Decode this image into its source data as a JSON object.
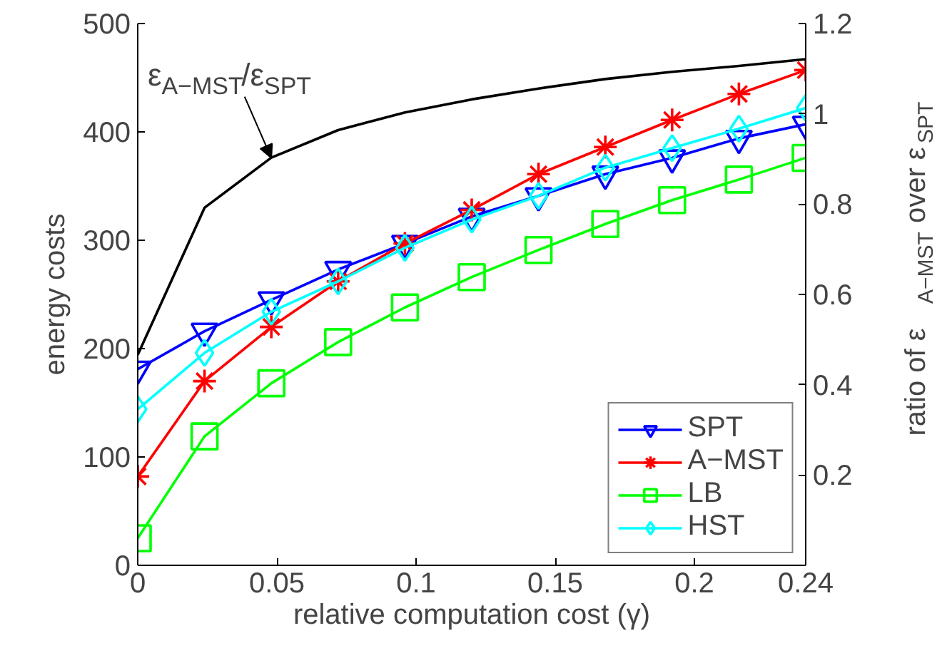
{
  "chart_data": {
    "type": "line",
    "xlabel": "relative computation cost (γ)",
    "ylabel": "energy costs",
    "y2label": "ratio of ε$_{A−MST}$ over ε$_{SPT}$",
    "x": [
      0,
      0.024,
      0.048,
      0.072,
      0.096,
      0.12,
      0.144,
      0.168,
      0.192,
      0.216,
      0.24
    ],
    "xlim": [
      0,
      0.24
    ],
    "xticks": [
      0,
      0.05,
      0.1,
      0.15,
      0.2,
      0.24
    ],
    "ylim": [
      0,
      500
    ],
    "yticks": [
      0,
      100,
      200,
      300,
      400,
      500
    ],
    "y2lim": [
      0,
      1.2
    ],
    "y2ticks": [
      0.2,
      0.4,
      0.6,
      0.8,
      1,
      1.2
    ],
    "grid": false,
    "legend": "bottom right",
    "series": [
      {
        "name": "SPT",
        "color": "#0000ff",
        "marker": "triangle",
        "values": [
          181,
          216,
          245,
          273,
          297,
          322,
          341,
          361,
          376,
          394,
          407
        ]
      },
      {
        "name": "A−MST",
        "color": "#ff0000",
        "marker": "cross",
        "values": [
          82,
          170,
          220,
          262,
          297,
          328,
          361,
          386,
          411,
          435,
          457
        ]
      },
      {
        "name": "LB",
        "color": "#00ff00",
        "marker": "square",
        "values": [
          25,
          119,
          168,
          206,
          238,
          266,
          291,
          315,
          337,
          356,
          376
        ]
      },
      {
        "name": "HST",
        "color": "#00ffff",
        "marker": "diamond",
        "values": [
          144,
          196,
          234,
          262,
          293,
          319,
          341,
          367,
          385,
          403,
          422
        ]
      },
      {
        "color": "#000000",
        "marker": "none",
        "axis": "y2",
        "values": [
          0.466,
          0.792,
          0.903,
          0.964,
          1.003,
          1.032,
          1.056,
          1.077,
          1.093,
          1.106,
          1.121
        ]
      }
    ],
    "annotations": [
      {
        "text": "ε$_{A−MST}$/ε$_{SPT}$",
        "x": 0.048,
        "y": 376
      }
    ]
  }
}
